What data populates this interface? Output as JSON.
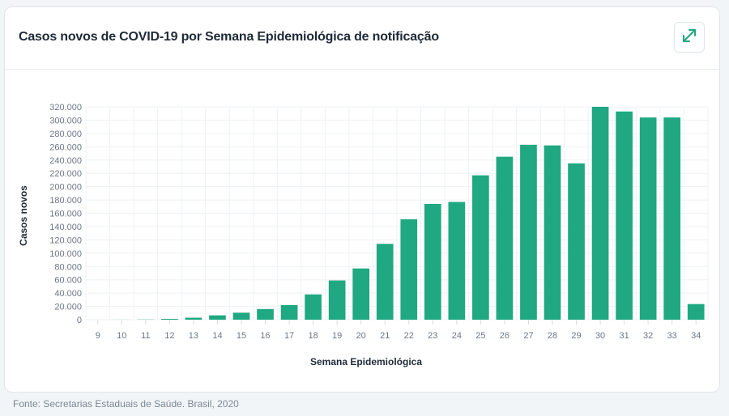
{
  "card": {
    "title": "Casos novos de COVID-19 por Semana Epidemiológica de notificação",
    "expand_icon": "expand-arrows-icon"
  },
  "source": "Fonte: Secretarias Estaduais de Saúde. Brasil, 2020",
  "colors": {
    "bar": "#1fa882",
    "grid": "#eef1f4",
    "expand_icon": "#1fa882"
  },
  "chart_data": {
    "type": "bar",
    "xlabel": "Semana Epidemiológica",
    "ylabel": "Casos novos",
    "ylim": [
      0,
      320000
    ],
    "grid": true,
    "yticks": [
      "0",
      "20.000",
      "40.000",
      "60.000",
      "80.000",
      "100.000",
      "120.000",
      "140.000",
      "160.000",
      "180.000",
      "200.000",
      "220.000",
      "240.000",
      "260.000",
      "280.000",
      "300.000",
      "320.000"
    ],
    "ytick_values": [
      0,
      20000,
      40000,
      60000,
      80000,
      100000,
      120000,
      140000,
      160000,
      180000,
      200000,
      220000,
      240000,
      260000,
      280000,
      300000,
      320000
    ],
    "categories": [
      "9",
      "10",
      "11",
      "12",
      "13",
      "14",
      "15",
      "16",
      "17",
      "18",
      "19",
      "20",
      "21",
      "22",
      "23",
      "24",
      "25",
      "26",
      "27",
      "28",
      "29",
      "30",
      "31",
      "32",
      "33",
      "34"
    ],
    "values": [
      0,
      100,
      300,
      1200,
      3000,
      6500,
      10500,
      16000,
      22000,
      38000,
      59000,
      77000,
      114000,
      151000,
      174000,
      177000,
      217000,
      245000,
      263000,
      262000,
      235000,
      320000,
      313000,
      304000,
      304000,
      23500
    ]
  }
}
